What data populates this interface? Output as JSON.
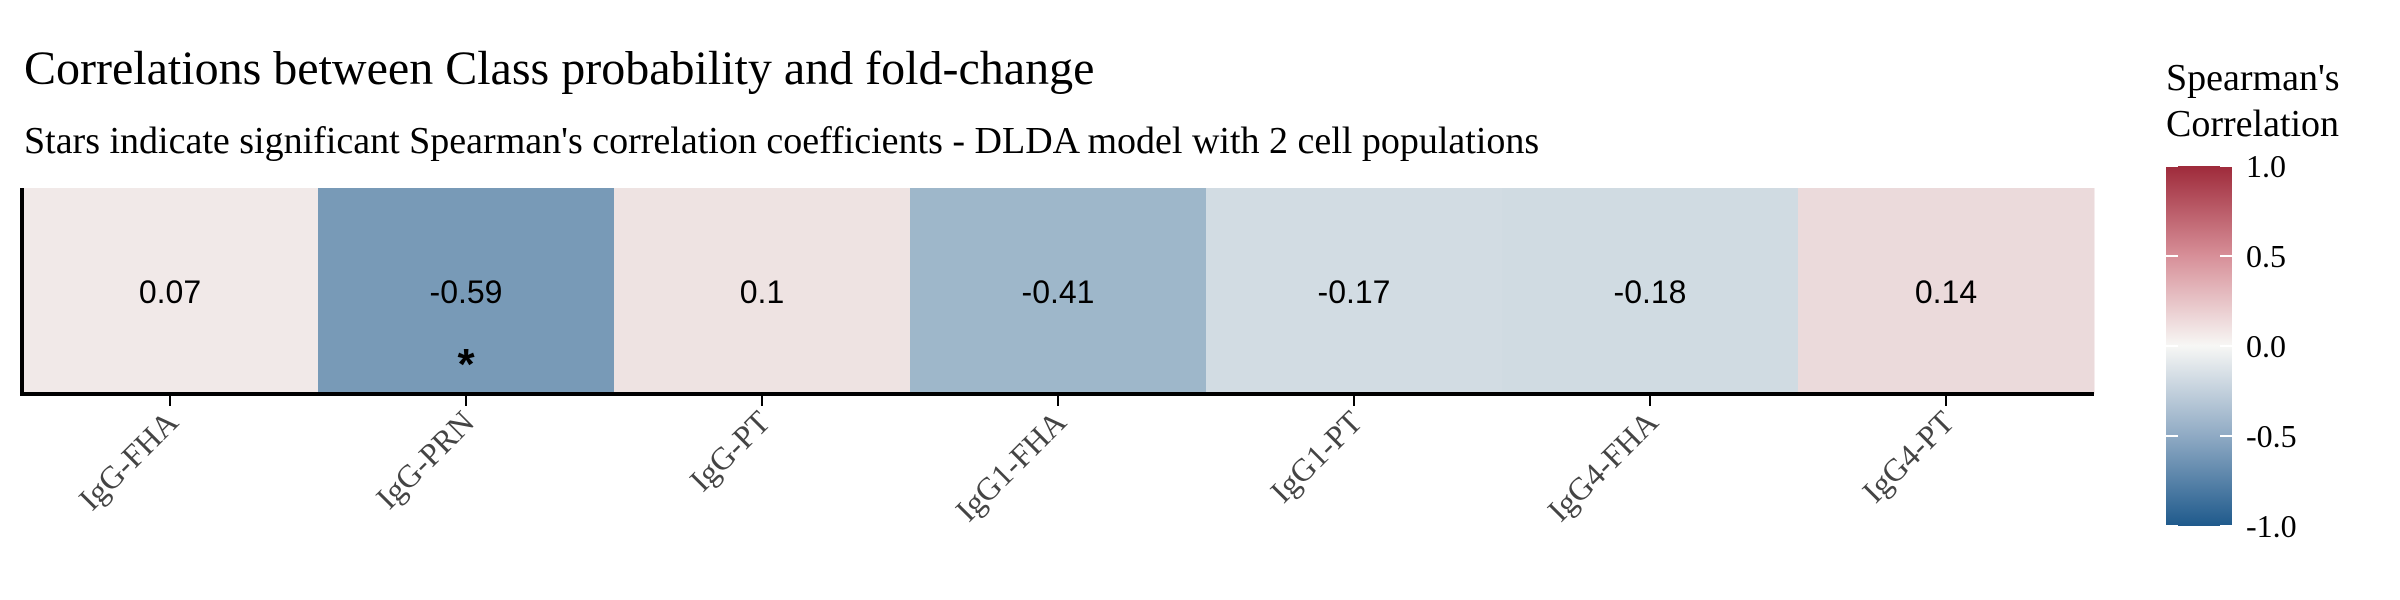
{
  "chart_data": {
    "type": "heatmap",
    "title": "Correlations between Class probability and fold-change",
    "subtitle": "Stars indicate significant Spearman's correlation coefficients - DLDA model with 2 cell populations",
    "categories": [
      "IgG-FHA",
      "IgG-PRN",
      "IgG-PT",
      "IgG1-FHA",
      "IgG1-PT",
      "IgG4-FHA",
      "IgG4-PT"
    ],
    "values": [
      0.07,
      -0.59,
      0.1,
      -0.41,
      -0.17,
      -0.18,
      0.14
    ],
    "value_labels": [
      "0.07",
      "-0.59",
      "0.1",
      "-0.41",
      "-0.17",
      "-0.18",
      "0.14"
    ],
    "significance": [
      "",
      "*",
      "",
      "",
      "",
      "",
      ""
    ],
    "legend": {
      "title_line1": "Spearman's",
      "title_line2": "Correlation",
      "range": [
        -1.0,
        1.0
      ],
      "ticks": [
        1.0,
        0.5,
        0.0,
        -0.5,
        -1.0
      ],
      "tick_labels": [
        "1.0",
        "0.5",
        "0.0",
        "-0.5",
        "-1.0"
      ],
      "placement": "right"
    },
    "colors": {
      "negative": "#1f5a8c",
      "neutral": "#f7f7f5",
      "positive": "#9e2a3a"
    }
  }
}
